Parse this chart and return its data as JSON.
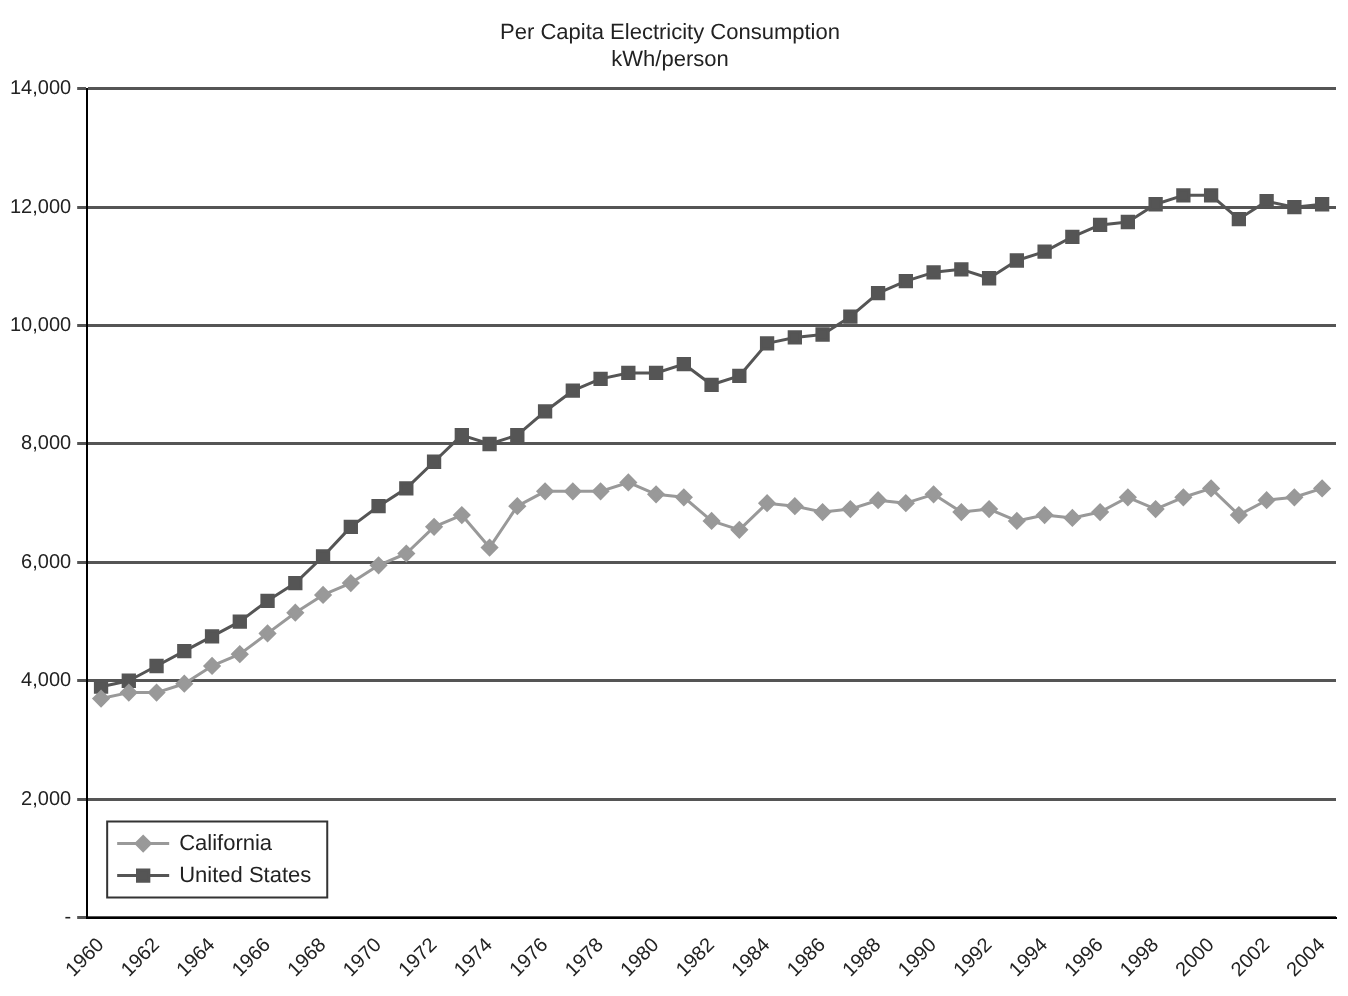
{
  "chart_data": {
    "type": "line",
    "title": "Per Capita Electricity Consumption",
    "subtitle": "kWh/person",
    "categories": [
      "1960",
      null,
      "1962",
      null,
      "1964",
      null,
      "1966",
      null,
      "1968",
      null,
      "1970",
      null,
      "1972",
      null,
      "1974",
      null,
      "1976",
      null,
      "1978",
      null,
      "1980",
      null,
      "1982",
      null,
      "1984",
      null,
      "1986",
      null,
      "1988",
      null,
      "1990",
      null,
      "1992",
      null,
      "1994",
      null,
      "1996",
      null,
      "1998",
      null,
      "2000",
      null,
      "2002",
      null,
      "2004"
    ],
    "series": [
      {
        "name": "California",
        "color": "#999999",
        "marker": "diamond",
        "values": [
          3700,
          3800,
          3800,
          3950,
          4250,
          4450,
          4800,
          5150,
          5450,
          5650,
          5950,
          6150,
          6600,
          6800,
          6250,
          6950,
          7200,
          7200,
          7200,
          7350,
          7150,
          7100,
          6700,
          6550,
          7000,
          6950,
          6850,
          6900,
          7050,
          7000,
          7150,
          6850,
          6900,
          6700,
          6800,
          6750,
          6850,
          7100,
          6900,
          7100,
          7250,
          6800,
          7050,
          7100,
          7250
        ]
      },
      {
        "name": "United States",
        "color": "#555555",
        "marker": "square",
        "values": [
          3900,
          4000,
          4250,
          4500,
          4750,
          5000,
          5350,
          5650,
          6100,
          6600,
          6950,
          7250,
          7700,
          8150,
          8000,
          8150,
          8550,
          8900,
          9100,
          9200,
          9200,
          9350,
          9000,
          9150,
          9700,
          9800,
          9850,
          10150,
          10550,
          10750,
          10900,
          10950,
          10800,
          11100,
          11250,
          11500,
          11700,
          11750,
          12050,
          12200,
          12200,
          11800,
          12100,
          12000,
          12050
        ]
      }
    ],
    "ylim": [
      0,
      14000
    ],
    "yticks": [
      {
        "value": 0,
        "label": "-"
      },
      {
        "value": 2000,
        "label": "2,000"
      },
      {
        "value": 4000,
        "label": "4,000"
      },
      {
        "value": 6000,
        "label": "6,000"
      },
      {
        "value": 8000,
        "label": "8,000"
      },
      {
        "value": 10000,
        "label": "10,000"
      },
      {
        "value": 12000,
        "label": "12,000"
      },
      {
        "value": 14000,
        "label": "14,000"
      }
    ],
    "grid": "y",
    "legend": "bottom left"
  }
}
